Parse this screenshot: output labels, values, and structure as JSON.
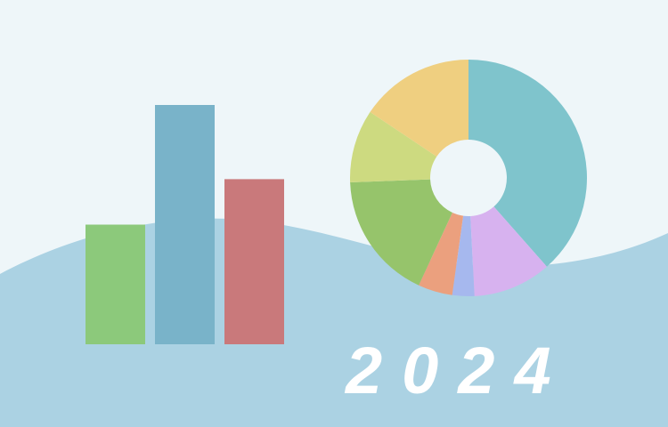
{
  "year": "2024",
  "colors": {
    "sky": "#eef6f9",
    "wave": "#abd2e3"
  },
  "chart_data": [
    {
      "type": "bar",
      "categories": [
        "",
        "",
        ""
      ],
      "values": [
        50,
        100,
        69
      ],
      "bar_colors": [
        "#8cc97b",
        "#79b3c9",
        "#c9797b"
      ]
    },
    {
      "type": "pie",
      "donut": true,
      "values": [
        38.5,
        10.7,
        3.0,
        4.7,
        17.5,
        10.0,
        15.6
      ],
      "slice_colors": [
        "#7fc4cc",
        "#d7b2ef",
        "#a6b8ee",
        "#eba07e",
        "#96c46b",
        "#cdda80",
        "#efcf80"
      ]
    }
  ]
}
